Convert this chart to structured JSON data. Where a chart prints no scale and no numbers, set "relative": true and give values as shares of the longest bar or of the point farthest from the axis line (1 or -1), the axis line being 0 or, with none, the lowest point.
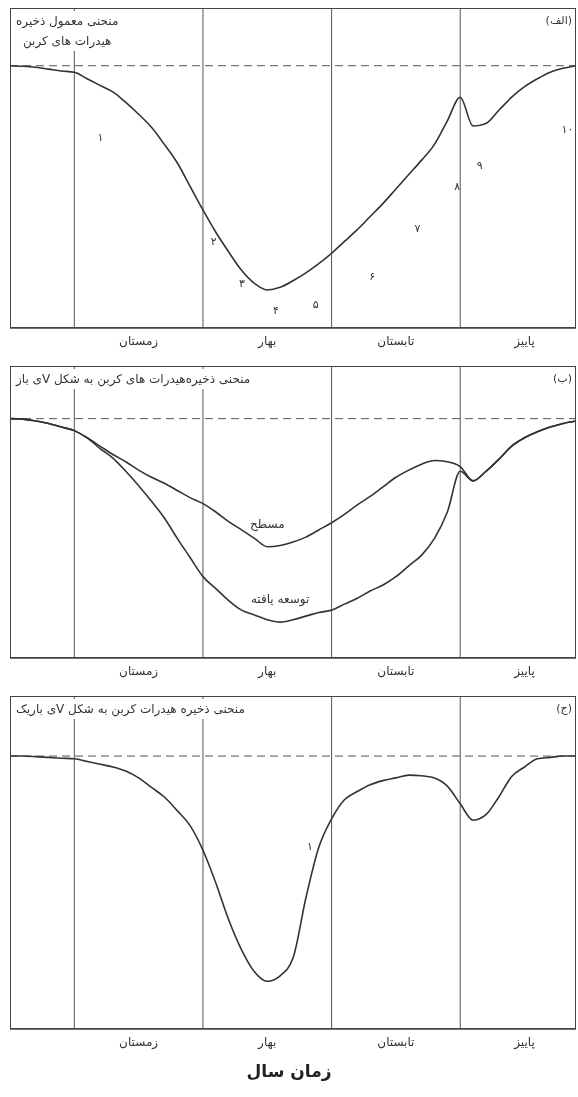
{
  "chart_data": [
    {
      "type": "line",
      "title": "منحنی معمول ذخیره\nهیدرات های کربن",
      "relative": true,
      "marker": "none",
      "line_style": "solid",
      "categories": [
        null,
        null,
        null,
        null,
        null,
        null,
        null,
        null,
        null,
        null,
        "زمستان",
        null,
        null,
        null,
        null,
        null,
        null,
        null,
        null,
        null,
        "بهار",
        null,
        null,
        null,
        null,
        null,
        null,
        null,
        null,
        null,
        "تابستان",
        null,
        null,
        null,
        null,
        null,
        null,
        null,
        null,
        null,
        "پاییز",
        null,
        null,
        null,
        null
      ],
      "grid": "x",
      "ref_lines": [
        {
          "axis": "y",
          "value": 1,
          "color": "#555555",
          "line_style": "dashed"
        }
      ],
      "annotations": [
        "(الف)",
        "۱",
        "۲",
        "۳",
        "۴",
        "۵",
        "۶",
        "۷",
        "۸",
        "۹",
        "۱۰"
      ],
      "series": [
        {
          "color": "#333333",
          "values": [
            1,
            0.998,
            0.994,
            0.987,
            0.98,
            0.975,
            0.95,
            0.925,
            0.9,
            0.86,
            0.815,
            0.765,
            0.7,
            0.63,
            0.54,
            0.45,
            0.365,
            0.29,
            0.22,
            0.17,
            0.145,
            0.155,
            0.18,
            0.21,
            0.245,
            0.285,
            0.33,
            0.375,
            0.425,
            0.475,
            0.53,
            0.585,
            0.64,
            0.7,
            0.79,
            0.88,
            0.77,
            0.78,
            0.83,
            0.88,
            0.92,
            0.95,
            0.975,
            0.99,
            1
          ]
        }
      ]
    },
    {
      "type": "line",
      "title": "منحنی ذخیره‌هیدرات های کربن به شکل Vی باز",
      "relative": true,
      "marker": "none",
      "line_style": "solid",
      "categories": [
        null,
        null,
        null,
        null,
        null,
        null,
        null,
        null,
        null,
        null,
        "زمستان",
        null,
        null,
        null,
        null,
        null,
        null,
        null,
        null,
        null,
        "بهار",
        null,
        null,
        null,
        null,
        null,
        null,
        null,
        null,
        null,
        "تابستان",
        null,
        null,
        null,
        null,
        null,
        null,
        null,
        null,
        null,
        "پاییز",
        null,
        null,
        null,
        null
      ],
      "grid": "x",
      "ref_lines": [
        {
          "axis": "y",
          "value": 1,
          "color": "#555555",
          "line_style": "dashed"
        }
      ],
      "annotations": [
        "(ب)"
      ],
      "series": [
        {
          "name": "مسطح",
          "color": "#333333",
          "values": [
            1,
            0.998,
            0.99,
            0.98,
            0.965,
            0.95,
            0.92,
            0.885,
            0.85,
            0.82,
            0.785,
            0.755,
            0.73,
            0.7,
            0.67,
            0.645,
            0.61,
            0.57,
            0.535,
            0.5,
            0.465,
            0.47,
            0.485,
            0.505,
            0.535,
            0.565,
            0.6,
            0.64,
            0.675,
            0.715,
            0.755,
            0.785,
            0.81,
            0.825,
            0.82,
            0.8,
            0.74,
            0.78,
            0.83,
            0.885,
            0.92,
            0.945,
            0.965,
            0.98,
            0.99
          ]
        },
        {
          "name": "توسعه یافته",
          "color": "#333333",
          "values": [
            1,
            0.998,
            0.99,
            0.98,
            0.965,
            0.95,
            0.92,
            0.875,
            0.835,
            0.78,
            0.72,
            0.655,
            0.585,
            0.5,
            0.42,
            0.34,
            0.29,
            0.24,
            0.2,
            0.18,
            0.16,
            0.15,
            0.16,
            0.175,
            0.19,
            0.2,
            0.225,
            0.25,
            0.28,
            0.305,
            0.34,
            0.385,
            0.43,
            0.5,
            0.61,
            0.78,
            0.74,
            0.78,
            0.83,
            0.885,
            0.92,
            0.945,
            0.965,
            0.98,
            0.99
          ]
        }
      ]
    },
    {
      "type": "line",
      "title": "منحنی ذخیره هیدرات کربن به شکل Vی باریک",
      "xlabel": "زمان سال",
      "relative": true,
      "marker": "none",
      "line_style": "solid",
      "categories": [
        null,
        null,
        null,
        null,
        null,
        null,
        null,
        null,
        null,
        null,
        "زمستان",
        null,
        null,
        null,
        null,
        null,
        null,
        null,
        null,
        null,
        "بهار",
        null,
        null,
        null,
        null,
        null,
        null,
        null,
        null,
        null,
        "تابستان",
        null,
        null,
        null,
        null,
        null,
        null,
        null,
        null,
        null,
        "پاییز",
        null,
        null,
        null,
        null
      ],
      "grid": "x",
      "ref_lines": [
        {
          "axis": "y",
          "value": 1,
          "color": "#555555",
          "line_style": "dashed"
        }
      ],
      "annotations": [
        "(ج)",
        "۱"
      ],
      "series": [
        {
          "color": "#333333",
          "values": [
            1,
            1,
            0.998,
            0.995,
            0.992,
            0.99,
            0.98,
            0.97,
            0.96,
            0.945,
            0.92,
            0.885,
            0.85,
            0.8,
            0.745,
            0.655,
            0.535,
            0.4,
            0.29,
            0.21,
            0.175,
            0.195,
            0.26,
            0.48,
            0.665,
            0.77,
            0.84,
            0.87,
            0.895,
            0.91,
            0.92,
            0.93,
            0.928,
            0.92,
            0.89,
            0.825,
            0.765,
            0.785,
            0.85,
            0.925,
            0.96,
            0.99,
            0.995,
            1,
            1
          ]
        }
      ]
    }
  ]
}
